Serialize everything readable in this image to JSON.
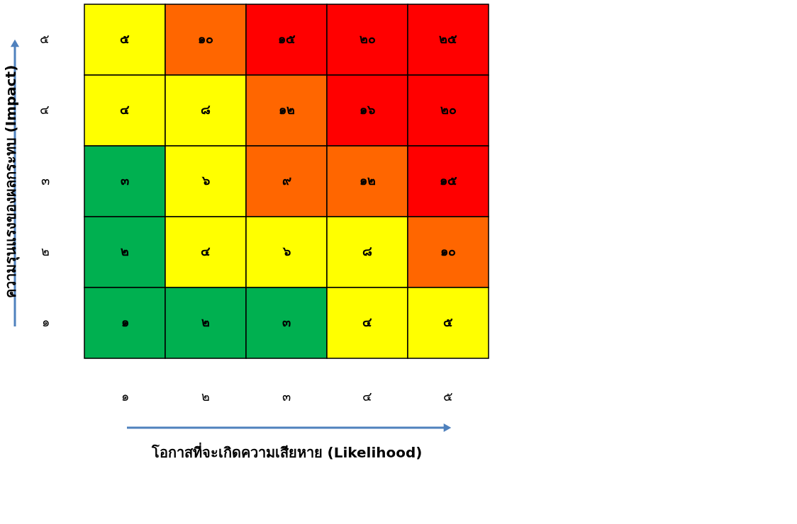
{
  "chart_data": {
    "type": "heatmap",
    "xlabel": "โอกาสที่จะเกิดความเสียหาย (Likelihood)",
    "ylabel": "ความรุนแรงของผลกระทบ (Impact)",
    "categories": [
      "๑",
      "๒",
      "๓",
      "๔",
      "๕"
    ],
    "y_categories": [
      "๕",
      "๔",
      "๓",
      "๒",
      "๑"
    ],
    "cells": [
      [
        5,
        10,
        15,
        20,
        25
      ],
      [
        4,
        8,
        12,
        16,
        20
      ],
      [
        3,
        6,
        9,
        12,
        15
      ],
      [
        2,
        4,
        6,
        8,
        10
      ],
      [
        1,
        2,
        3,
        4,
        5
      ]
    ],
    "cell_labels": [
      [
        "๕",
        "๑๐",
        "๑๕",
        "๒๐",
        "๒๕"
      ],
      [
        "๔",
        "๘",
        "๑๒",
        "๑๖",
        "๒๐"
      ],
      [
        "๓",
        "๖",
        "๙",
        "๑๒",
        "๑๕"
      ],
      [
        "๒",
        "๔",
        "๖",
        "๘",
        "๑๐"
      ],
      [
        "๑",
        "๒",
        "๓",
        "๔",
        "๕"
      ]
    ],
    "colors": [
      [
        "#ffff00",
        "#ff6600",
        "#ff0000",
        "#ff0000",
        "#ff0000"
      ],
      [
        "#ffff00",
        "#ffff00",
        "#ff6600",
        "#ff0000",
        "#ff0000"
      ],
      [
        "#00b050",
        "#ffff00",
        "#ff6600",
        "#ff6600",
        "#ff0000"
      ],
      [
        "#00b050",
        "#ffff00",
        "#ffff00",
        "#ffff00",
        "#ff6600"
      ],
      [
        "#00b050",
        "#00b050",
        "#00b050",
        "#ffff00",
        "#ffff00"
      ]
    ]
  }
}
